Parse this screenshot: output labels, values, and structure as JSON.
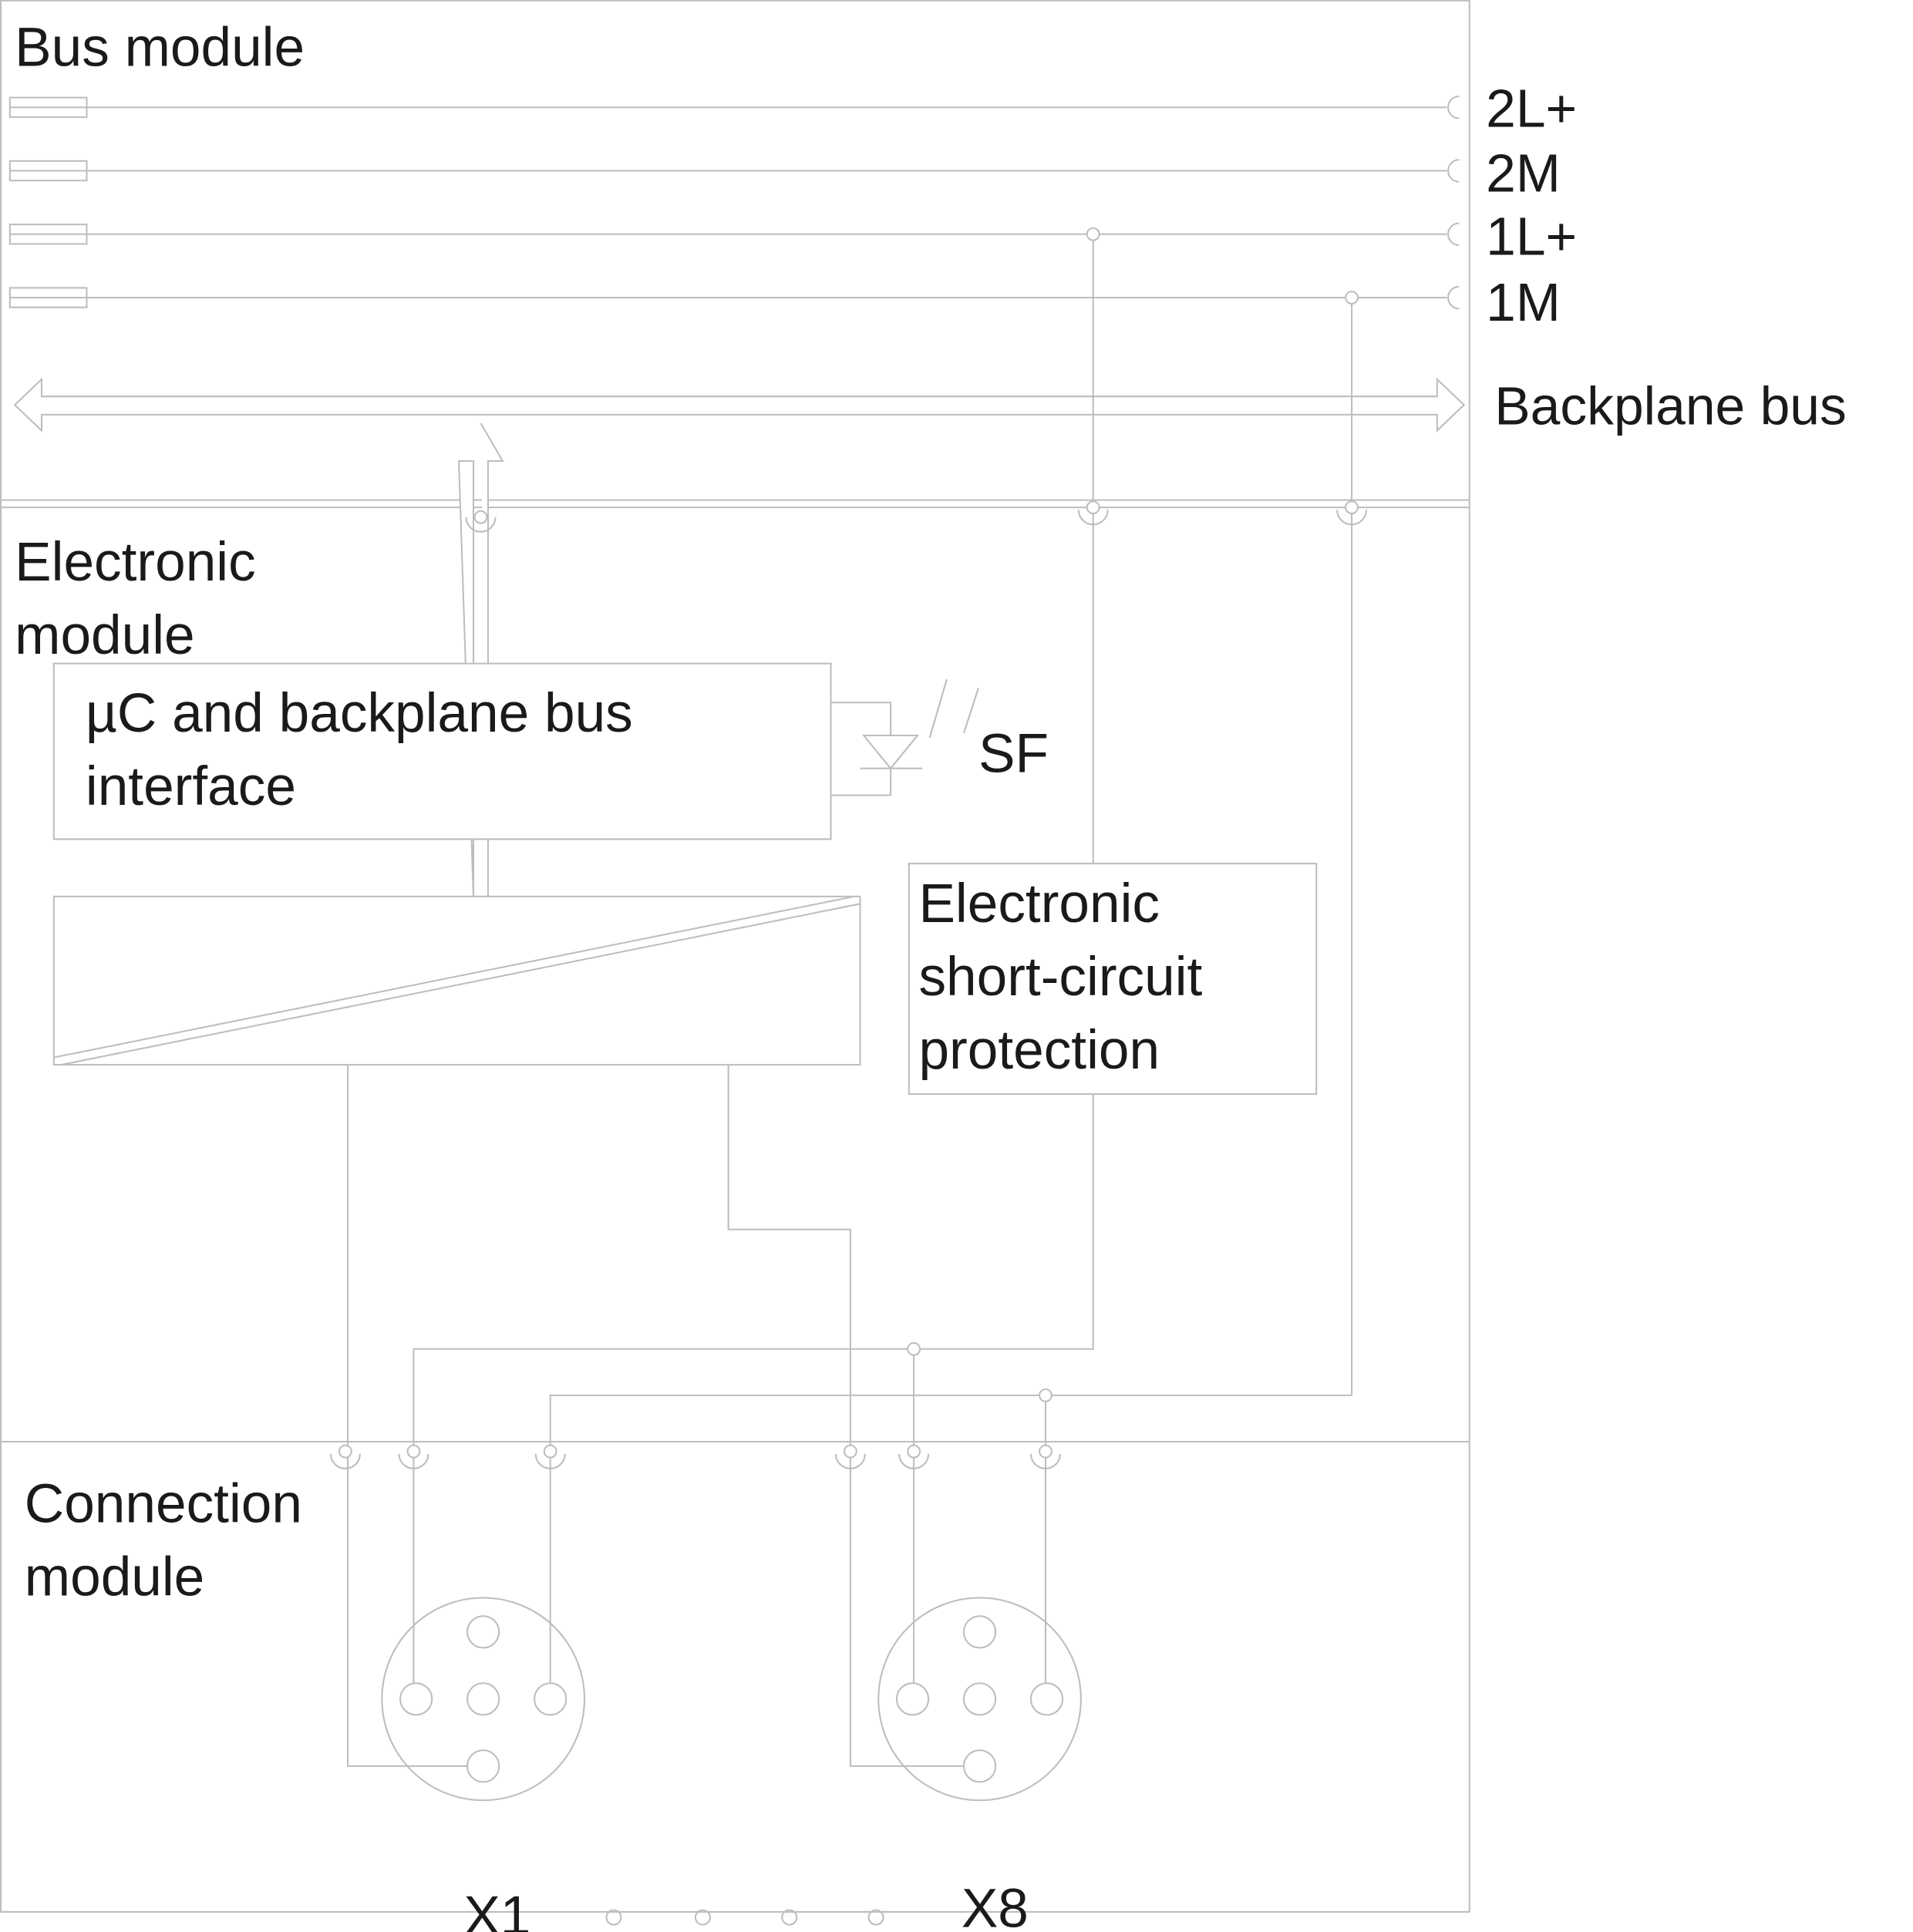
{
  "modules": {
    "bus": {
      "label": "Bus module"
    },
    "electronic": {
      "label_line1": "Electronic",
      "label_line2": "module"
    },
    "connection": {
      "label_line1": "Connection",
      "label_line2": "module"
    }
  },
  "rails": [
    {
      "label": "2L+"
    },
    {
      "label": "2M"
    },
    {
      "label": "1L+"
    },
    {
      "label": "1M"
    }
  ],
  "backplane_bus": {
    "label": "Backplane bus"
  },
  "uc_block": {
    "line1": "µC and backplane bus",
    "line2": "interface"
  },
  "status_led": {
    "label": "SF"
  },
  "short_circuit": {
    "line1": "Electronic",
    "line2": "short-circuit",
    "line3": "protection"
  },
  "connectors": [
    {
      "label": "X1"
    },
    {
      "label": "X8"
    }
  ],
  "line_color": "#bdbdbd",
  "text_color": "#1a1a1a"
}
